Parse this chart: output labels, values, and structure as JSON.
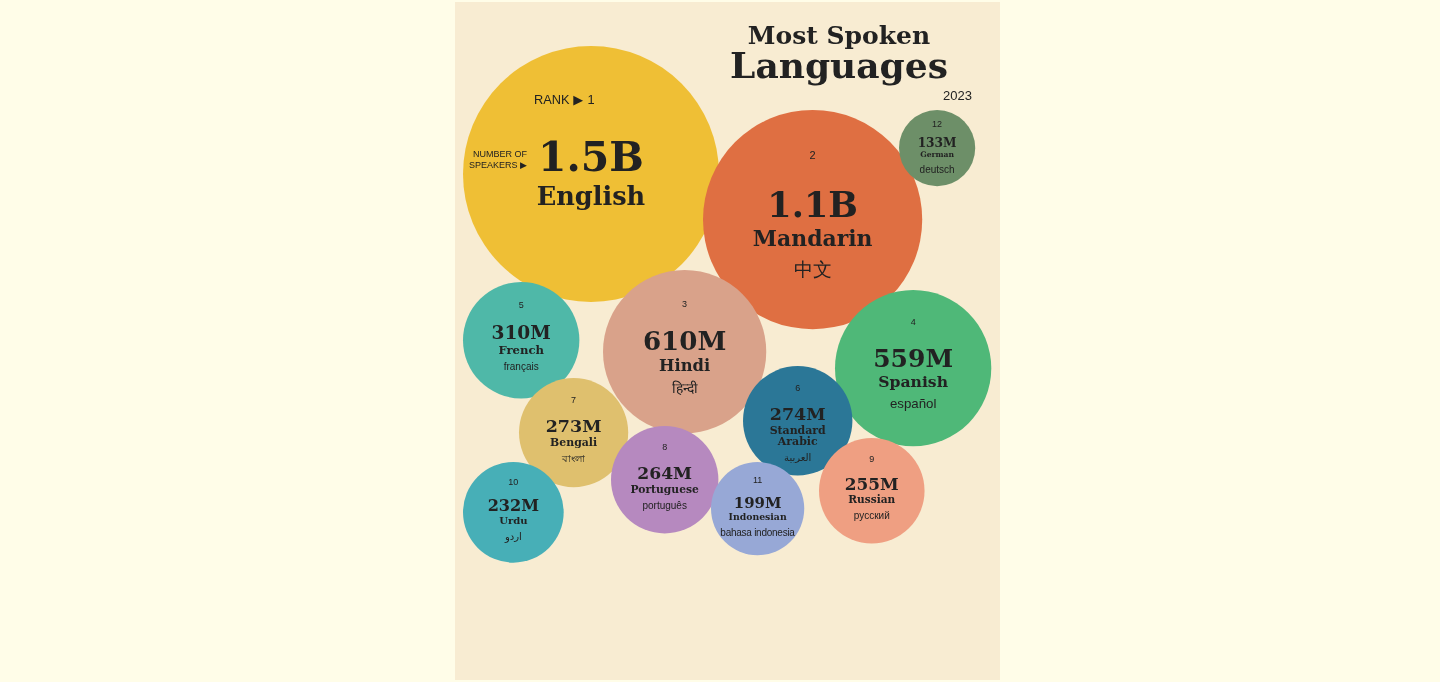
{
  "chart_data": {
    "type": "other",
    "title": "Most Spoken Languages",
    "subtitle": "2023",
    "categories": [
      "English",
      "Mandarin",
      "Hindi",
      "Spanish",
      "French",
      "Standard Arabic",
      "Bengali",
      "Portuguese",
      "Russian",
      "Urdu",
      "Indonesian",
      "German"
    ],
    "values": [
      1500000000,
      1100000000,
      610000000,
      559000000,
      310000000,
      274000000,
      273000000,
      264000000,
      255000000,
      232000000,
      199000000,
      133000000
    ],
    "value_labels": [
      "1.5B",
      "1.1B",
      "610M",
      "559M",
      "310M",
      "274M",
      "273M",
      "264M",
      "255M",
      "232M",
      "199M",
      "133M"
    ],
    "colors": [
      "#efbf35",
      "#df6f42",
      "#d9a28a",
      "#4fb878",
      "#4fb8a8",
      "#2b7797",
      "#dfc06e",
      "#b689bf",
      "#ef9f82",
      "#47afb7",
      "#97a8d6",
      "#6d8f68"
    ],
    "annotations": [
      "RANK ▶",
      "NUMBER OF SPEAKERS ▶",
      {
        "text": "1",
        "x": "English"
      },
      {
        "text": "2",
        "x": "Mandarin"
      },
      {
        "text": "中文",
        "x": "Mandarin"
      },
      {
        "text": "3",
        "x": "Hindi"
      },
      {
        "text": "हिन्दी",
        "x": "Hindi"
      },
      {
        "text": "4",
        "x": "Spanish"
      },
      {
        "text": "español",
        "x": "Spanish"
      },
      {
        "text": "5",
        "x": "French"
      },
      {
        "text": "français",
        "x": "French"
      },
      {
        "text": "6",
        "x": "Standard Arabic"
      },
      {
        "text": "العربية",
        "x": "Standard Arabic"
      },
      {
        "text": "7",
        "x": "Bengali"
      },
      {
        "text": "বাংলা",
        "x": "Bengali"
      },
      {
        "text": "8",
        "x": "Portuguese"
      },
      {
        "text": "português",
        "x": "Portuguese"
      },
      {
        "text": "9",
        "x": "Russian"
      },
      {
        "text": "русский",
        "x": "Russian"
      },
      {
        "text": "10",
        "x": "Urdu"
      },
      {
        "text": "اردو",
        "x": "Urdu"
      },
      {
        "text": "11",
        "x": "Indonesian"
      },
      {
        "text": "bahasa indonesia",
        "x": "Indonesian"
      },
      {
        "text": "12",
        "x": "German"
      },
      {
        "text": "deutsch",
        "x": "German"
      }
    ]
  }
}
